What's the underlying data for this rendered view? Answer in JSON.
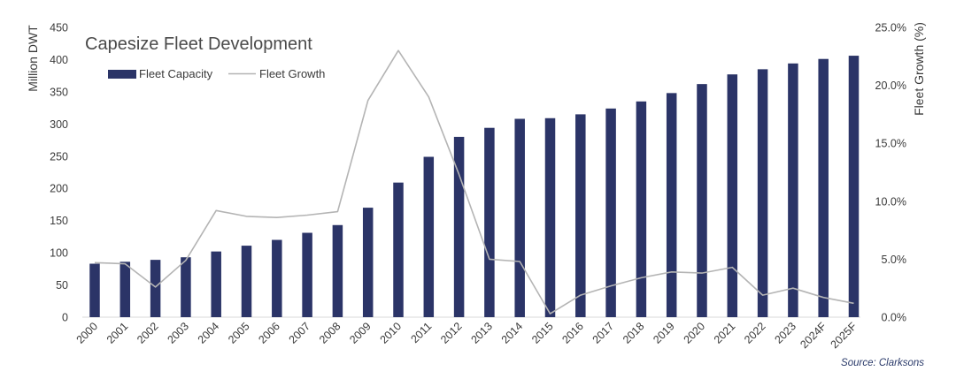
{
  "chart_data": {
    "type": "bar",
    "title": "Capesize Fleet Development",
    "ylabel": "Million DWT",
    "y2label": "Fleet Growth (%)",
    "source": "Source: Clarksons",
    "ylim": [
      0,
      450
    ],
    "y2lim": [
      0,
      25
    ],
    "yticks": [
      "0",
      "50",
      "100",
      "150",
      "200",
      "250",
      "300",
      "350",
      "400",
      "450"
    ],
    "y2ticks": [
      "0.0%",
      "5.0%",
      "10.0%",
      "15.0%",
      "20.0%",
      "25.0%"
    ],
    "legend_position": "top-left",
    "grid": false,
    "categories": [
      "2000",
      "2001",
      "2002",
      "2003",
      "2004",
      "2005",
      "2006",
      "2007",
      "2008",
      "2009",
      "2010",
      "2011",
      "2012",
      "2013",
      "2014",
      "2015",
      "2016",
      "2017",
      "2018",
      "2019",
      "2020",
      "2021",
      "2022",
      "2023",
      "2024F",
      "2025F"
    ],
    "series": [
      {
        "name": "Fleet Capacity",
        "type": "bar",
        "axis": "left",
        "color": "#2b3467",
        "values": [
          83,
          86,
          89,
          93,
          102,
          111,
          120,
          131,
          143,
          170,
          209,
          249,
          280,
          294,
          308,
          309,
          315,
          324,
          335,
          348,
          362,
          377,
          385,
          394,
          401,
          406
        ]
      },
      {
        "name": "Fleet Growth",
        "type": "line",
        "axis": "right",
        "color": "#b4b4b4",
        "values": [
          4.7,
          4.6,
          2.6,
          4.9,
          9.2,
          8.7,
          8.6,
          8.8,
          9.1,
          18.7,
          23.0,
          19.0,
          12.3,
          5.0,
          4.8,
          0.3,
          1.9,
          2.7,
          3.4,
          3.9,
          3.8,
          4.3,
          1.9,
          2.5,
          1.7,
          1.2
        ]
      }
    ]
  }
}
